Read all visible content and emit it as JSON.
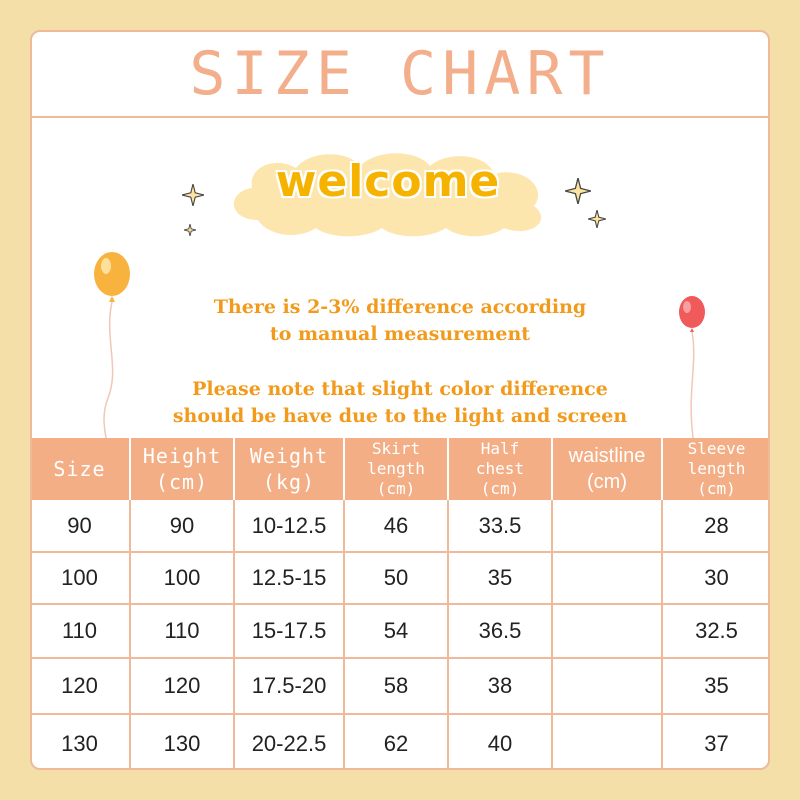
{
  "title": "SIZE CHART",
  "welcome": "welcome",
  "note_1": [
    "There is 2-3% difference according",
    "to manual measurement"
  ],
  "note_2": [
    "Please note that slight color difference",
    "should be have due to the light and screen"
  ],
  "colors": {
    "background": "#f5dfa9",
    "accent": "#f3ae85",
    "note_text": "#f19a1b",
    "welcome_text": "#f5b300",
    "balloon_left": "#f7b33d",
    "balloon_right": "#f05a5a"
  },
  "icons": [
    "sparkle-icon",
    "cloud-shape",
    "balloon-icon"
  ],
  "table": {
    "headers": [
      [
        "Size"
      ],
      [
        "Height",
        "(cm)"
      ],
      [
        "Weight",
        "(kg)"
      ],
      [
        "Skirt",
        "length",
        "(cm)"
      ],
      [
        "Half",
        "chest",
        "(cm)"
      ],
      [
        "waistline",
        "(cm)"
      ],
      [
        "Sleeve",
        "length",
        "(cm)"
      ]
    ],
    "rows": [
      [
        "90",
        "90",
        "10-12.5",
        "46",
        "33.5",
        "",
        "28"
      ],
      [
        "100",
        "100",
        "12.5-15",
        "50",
        "35",
        "",
        "30"
      ],
      [
        "110",
        "110",
        "15-17.5",
        "54",
        "36.5",
        "",
        "32.5"
      ],
      [
        "120",
        "120",
        "17.5-20",
        "58",
        "38",
        "",
        "35"
      ],
      [
        "130",
        "130",
        "20-22.5",
        "62",
        "40",
        "",
        "37"
      ]
    ]
  }
}
